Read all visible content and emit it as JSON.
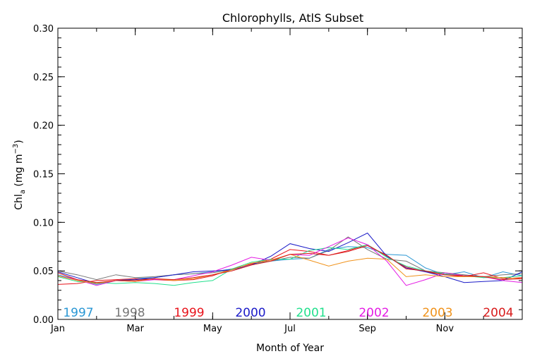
{
  "chart_data": {
    "type": "line",
    "title": "Chlorophylls, AtlS Subset",
    "xlabel": "Month of Year",
    "ylabel_main": "Chl",
    "ylabel_sub": "a",
    "ylabel_unit_open": " (mg m",
    "ylabel_unit_sup": "−3",
    "ylabel_unit_close": ")",
    "xlim": [
      1,
      13
    ],
    "ylim": [
      0,
      0.3
    ],
    "xticks": [
      {
        "x": 1,
        "label": "Jan"
      },
      {
        "x": 3,
        "label": "Mar"
      },
      {
        "x": 5,
        "label": "May"
      },
      {
        "x": 7,
        "label": "Jul"
      },
      {
        "x": 9,
        "label": "Sep"
      },
      {
        "x": 11,
        "label": "Nov"
      }
    ],
    "yticks": [
      {
        "y": 0.0,
        "label": "0.00"
      },
      {
        "y": 0.05,
        "label": "0.05"
      },
      {
        "y": 0.1,
        "label": "0.10"
      },
      {
        "y": 0.15,
        "label": "0.15"
      },
      {
        "y": 0.2,
        "label": "0.20"
      },
      {
        "y": 0.25,
        "label": "0.25"
      },
      {
        "y": 0.3,
        "label": "0.30"
      }
    ],
    "x": [
      1,
      1.5,
      2,
      2.5,
      3,
      3.5,
      4,
      4.5,
      5,
      5.5,
      6,
      6.5,
      7,
      7.5,
      8,
      8.5,
      9,
      9.5,
      10,
      10.5,
      11,
      11.5,
      12,
      12.5,
      13
    ],
    "legend_placement": "bottom",
    "series": [
      {
        "name": "1997",
        "color": "#2a97d4",
        "values": [
          0.046,
          0.041,
          0.036,
          0.04,
          0.042,
          0.043,
          0.046,
          0.047,
          0.049,
          0.052,
          0.057,
          0.06,
          0.062,
          0.063,
          0.072,
          0.075,
          0.074,
          0.067,
          0.066,
          0.053,
          0.046,
          0.049,
          0.043,
          0.049,
          0.045
        ]
      },
      {
        "name": "1998",
        "color": "#777777",
        "values": [
          0.05,
          0.046,
          0.041,
          0.046,
          0.043,
          0.044,
          0.046,
          0.047,
          0.048,
          0.051,
          0.058,
          0.06,
          0.064,
          0.063,
          0.071,
          0.085,
          0.072,
          0.062,
          0.06,
          0.05,
          0.048,
          0.046,
          0.044,
          0.046,
          0.047
        ]
      },
      {
        "name": "1999",
        "color": "#e8131b",
        "values": [
          0.036,
          0.037,
          0.04,
          0.041,
          0.042,
          0.041,
          0.04,
          0.041,
          0.045,
          0.052,
          0.057,
          0.062,
          0.072,
          0.07,
          0.066,
          0.071,
          0.077,
          0.065,
          0.054,
          0.049,
          0.046,
          0.044,
          0.048,
          0.042,
          0.043
        ]
      },
      {
        "name": "2000",
        "color": "#1b1bc8",
        "values": [
          0.049,
          0.043,
          0.037,
          0.04,
          0.041,
          0.043,
          0.046,
          0.049,
          0.05,
          0.051,
          0.056,
          0.065,
          0.078,
          0.073,
          0.07,
          0.079,
          0.089,
          0.065,
          0.053,
          0.049,
          0.044,
          0.038,
          0.039,
          0.04,
          0.049
        ]
      },
      {
        "name": "2001",
        "color": "#22e08d",
        "values": [
          0.044,
          0.039,
          0.038,
          0.037,
          0.038,
          0.037,
          0.035,
          0.038,
          0.04,
          0.052,
          0.059,
          0.062,
          0.062,
          0.071,
          0.074,
          0.072,
          0.077,
          0.064,
          0.055,
          0.05,
          0.047,
          0.045,
          0.043,
          0.043,
          0.045
        ]
      },
      {
        "name": "2002",
        "color": "#e41be4",
        "values": [
          0.045,
          0.041,
          0.035,
          0.04,
          0.039,
          0.041,
          0.041,
          0.045,
          0.049,
          0.056,
          0.064,
          0.061,
          0.067,
          0.066,
          0.075,
          0.084,
          0.077,
          0.06,
          0.035,
          0.041,
          0.048,
          0.045,
          0.044,
          0.04,
          0.038
        ]
      },
      {
        "name": "2003",
        "color": "#f0921a",
        "values": [
          0.045,
          0.04,
          0.037,
          0.04,
          0.039,
          0.042,
          0.04,
          0.042,
          0.046,
          0.051,
          0.058,
          0.061,
          0.067,
          0.061,
          0.055,
          0.06,
          0.063,
          0.062,
          0.044,
          0.046,
          0.044,
          0.044,
          0.044,
          0.043,
          0.042
        ]
      },
      {
        "name": "2004",
        "color": "#d81b1b",
        "values": [
          0.048,
          0.041,
          0.038,
          0.04,
          0.04,
          0.042,
          0.041,
          0.043,
          0.046,
          0.05,
          0.056,
          0.06,
          0.067,
          0.068,
          0.066,
          0.07,
          0.076,
          0.066,
          0.052,
          0.05,
          0.046,
          0.045,
          0.044,
          0.041,
          0.042
        ]
      }
    ]
  }
}
